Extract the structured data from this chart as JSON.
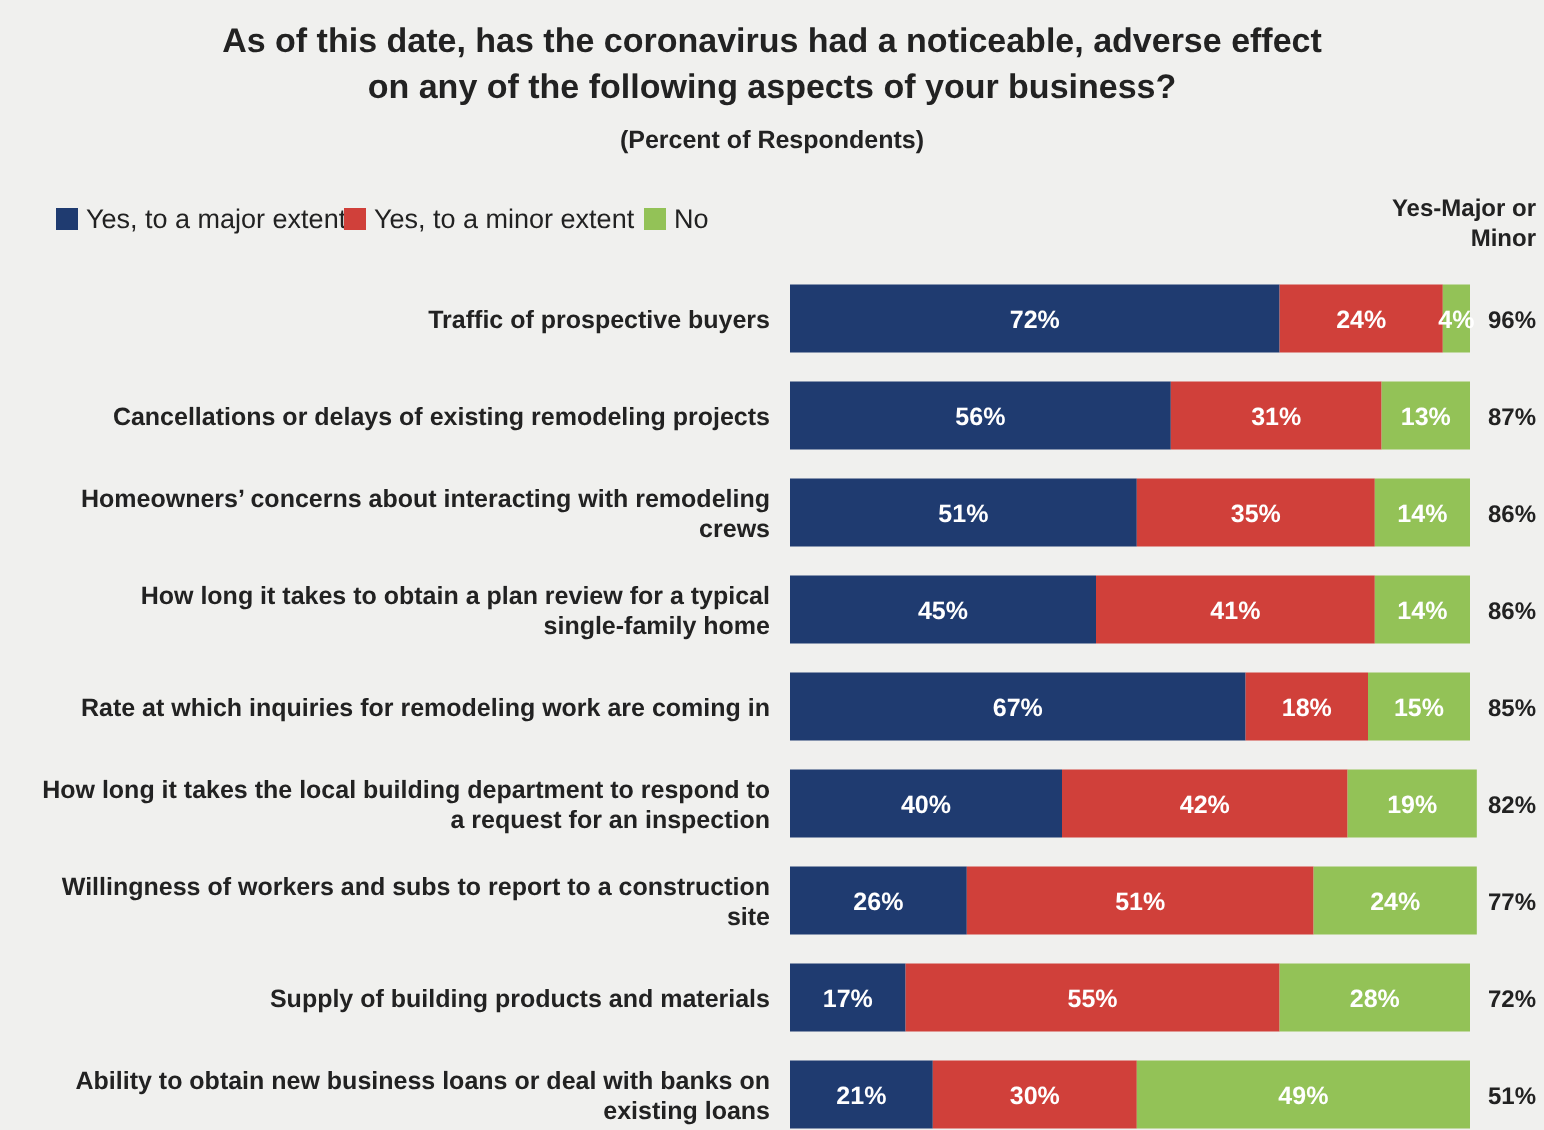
{
  "chart_data": {
    "type": "bar",
    "orientation": "horizontal",
    "stacked": true,
    "relative": false,
    "title": "As of this date, has the coronavirus had a noticeable, adverse effect on any of the following aspects of your business?",
    "subtitle": "(Percent of Respondents)",
    "categories": [
      "Traffic of prospective buyers",
      "Cancellations or delays of existing remodeling projects",
      "Homeowners’ concerns about interacting with remodeling crews",
      "How long it takes to obtain a plan review for a typical single-family home",
      "Rate at which inquiries for remodeling work are coming in",
      "How long it takes the local building department to respond to a request for an inspection",
      "Willingness of workers and subs to report to a construction site",
      "Supply of building products and materials",
      "Ability to obtain new business loans or deal with banks on existing loans"
    ],
    "series": [
      {
        "name": "Yes, to a major extent",
        "color": "#1f3b70",
        "values": [
          72,
          56,
          51,
          45,
          67,
          40,
          26,
          17,
          21
        ],
        "value_labels": [
          "72%",
          "56%",
          "51%",
          "45%",
          "67%",
          "40%",
          "26%",
          "17%",
          "21%"
        ]
      },
      {
        "name": "Yes, to a minor extent",
        "color": "#d0403a",
        "values": [
          24,
          31,
          35,
          41,
          18,
          42,
          51,
          55,
          30
        ],
        "value_labels": [
          "24%",
          "31%",
          "35%",
          "41%",
          "18%",
          "42%",
          "51%",
          "55%",
          "30%"
        ]
      },
      {
        "name": "No",
        "color": "#93c257",
        "values": [
          4,
          13,
          14,
          14,
          15,
          19,
          24,
          28,
          49
        ],
        "value_labels": [
          "4%",
          "13%",
          "14%",
          "14%",
          "15%",
          "19%",
          "24%",
          "28%",
          "49%"
        ]
      }
    ],
    "annotations": [
      "Yes-Major or Minor",
      "96%",
      "87%",
      "86%",
      "86%",
      "85%",
      "82%",
      "77%",
      "72%",
      "51%"
    ],
    "legend": "top left",
    "grid": false
  }
}
